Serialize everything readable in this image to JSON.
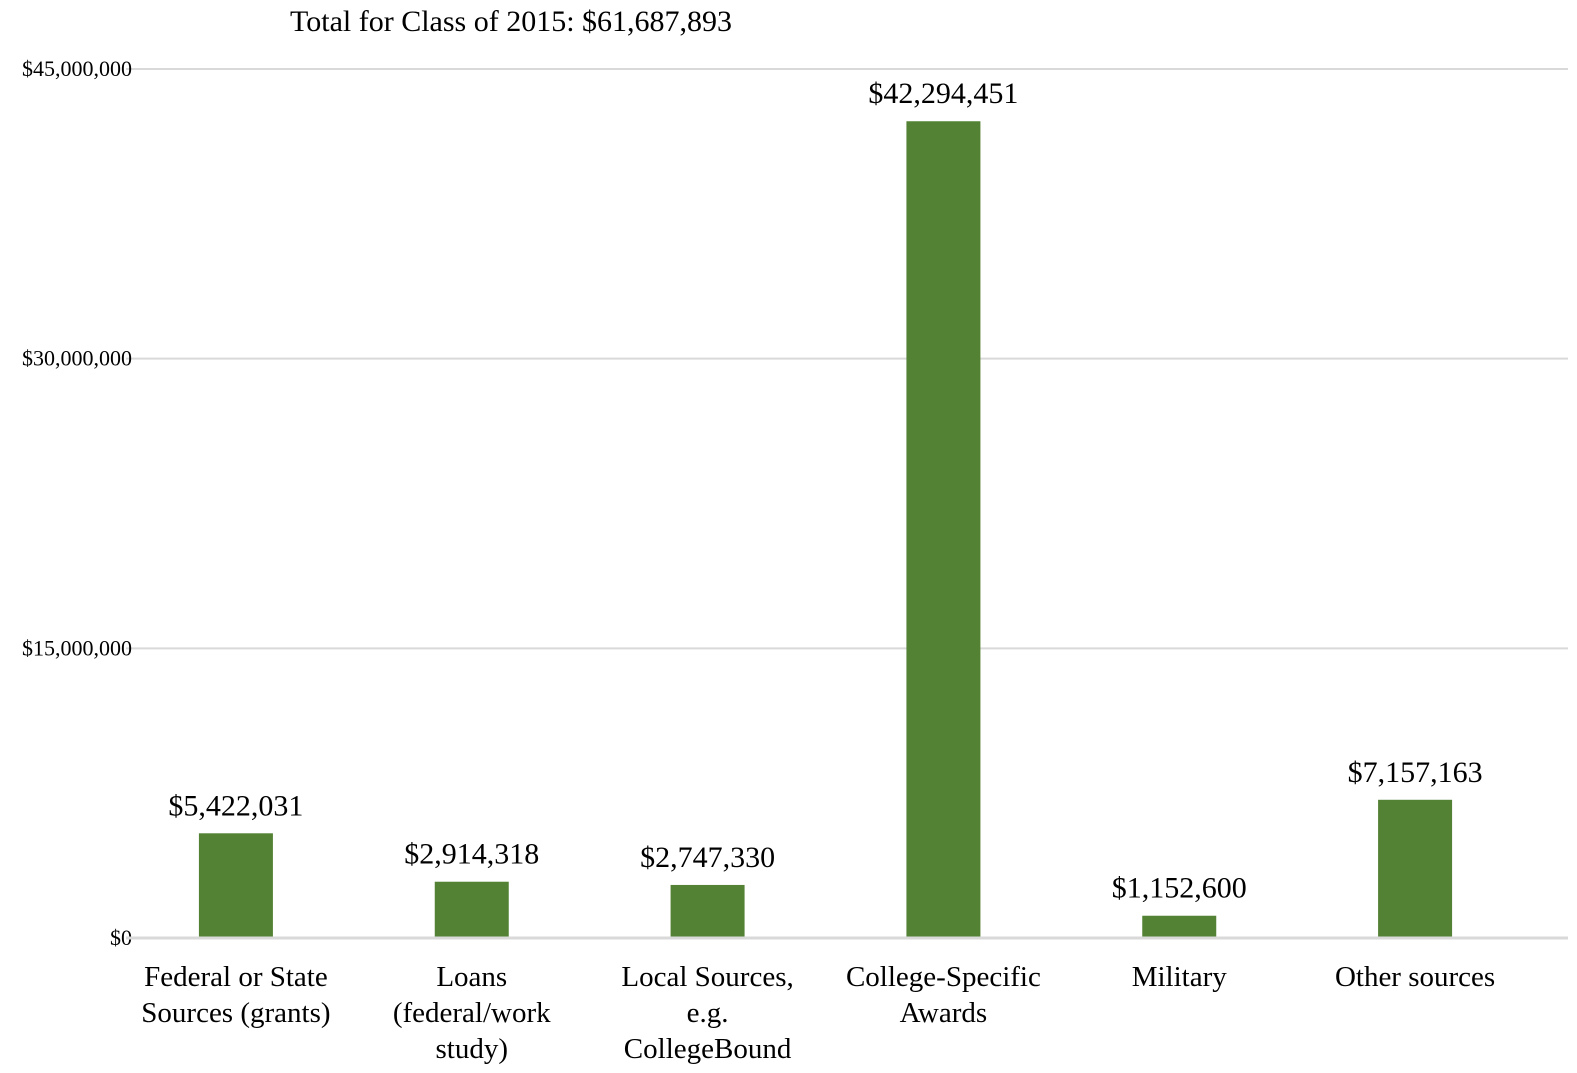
{
  "chart_data": {
    "type": "bar",
    "title": "Total for Class of 2015: $61,687,893",
    "xlabel": "",
    "ylabel": "",
    "ylim": [
      0,
      45000000
    ],
    "yticks": [
      0,
      15000000,
      30000000,
      45000000
    ],
    "ytick_labels": [
      "$0",
      "$15,000,000",
      "$30,000,000",
      "$45,000,000"
    ],
    "grid": true,
    "legend": "none",
    "bar_color": "#548235",
    "categories": [
      [
        "Federal or State",
        "Sources (grants)"
      ],
      [
        "Loans",
        "(federal/work",
        "study)"
      ],
      [
        "Local Sources,",
        "e.g.",
        "CollegeBound"
      ],
      [
        "College-Specific",
        "Awards"
      ],
      [
        "Military"
      ],
      [
        "Other sources"
      ]
    ],
    "values": [
      5422031,
      2914318,
      2747330,
      42294451,
      1152600,
      7157163
    ],
    "data_labels": [
      "$5,422,031",
      "$2,914,318",
      "$2,747,330",
      "$42,294,451",
      "$1,152,600",
      "$7,157,163"
    ]
  }
}
